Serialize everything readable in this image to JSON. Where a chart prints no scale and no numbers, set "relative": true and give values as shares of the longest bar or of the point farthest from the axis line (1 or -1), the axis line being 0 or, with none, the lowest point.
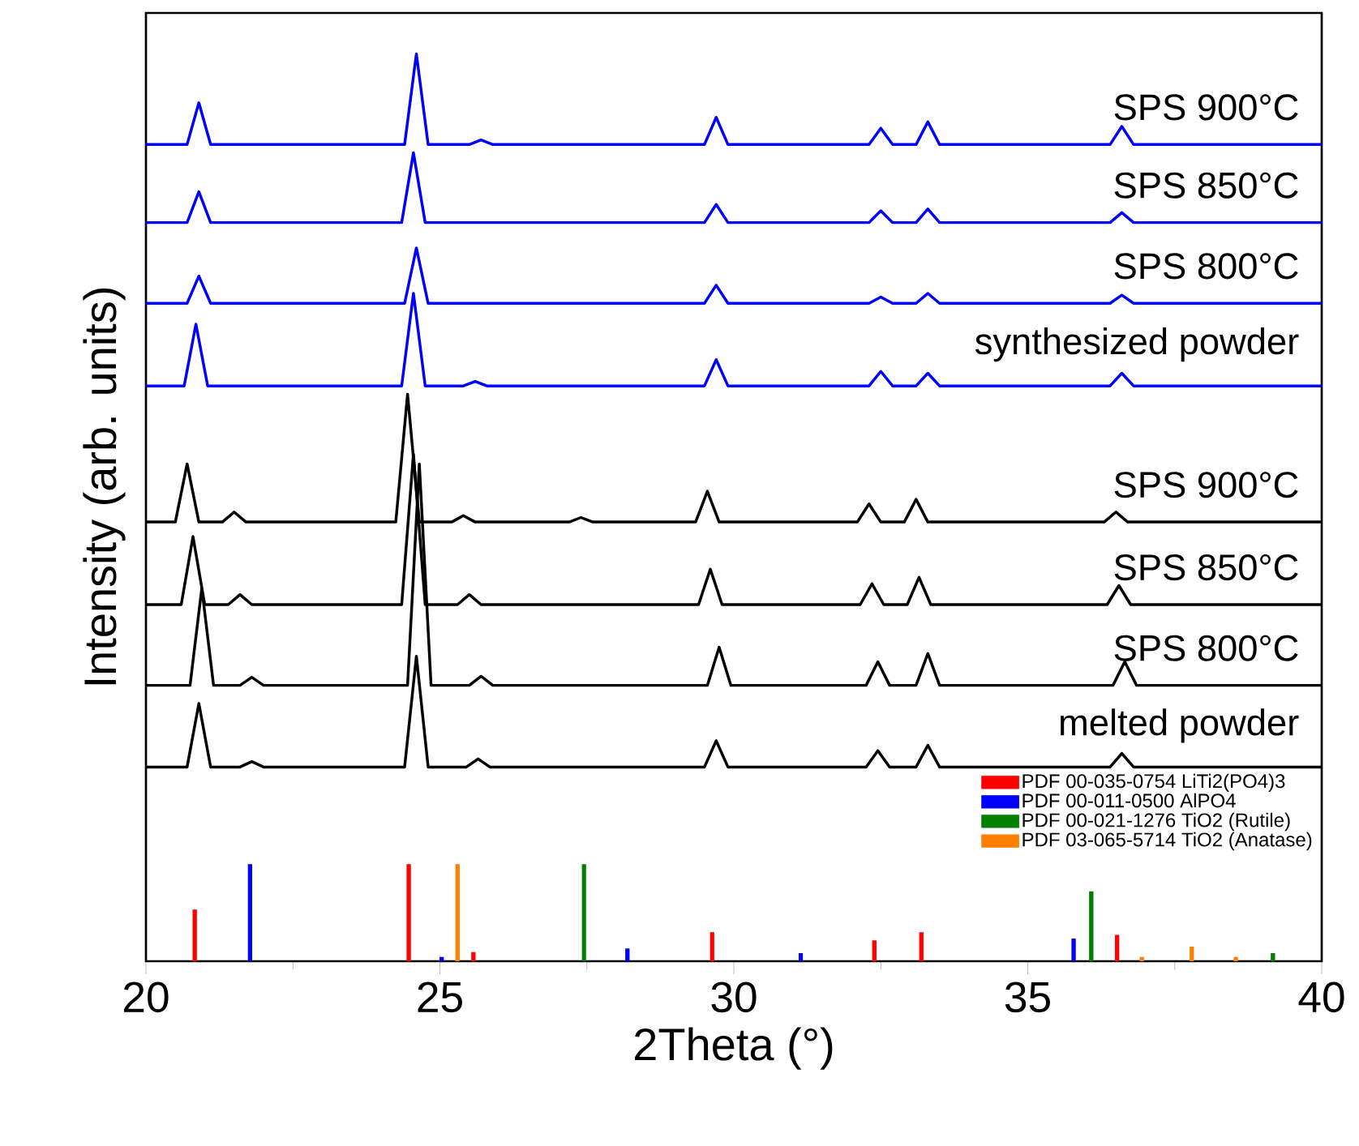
{
  "chart_data": {
    "type": "line",
    "relative": true,
    "xlabel": "2Theta (°)",
    "ylabel": "Intensity (arb. units)",
    "xlim": [
      20,
      40
    ],
    "xticks": [
      20,
      25,
      30,
      35,
      40
    ],
    "legend": "bottom right",
    "series": [
      {
        "name": "SPS 900°C",
        "color": "#0000ff",
        "x": [
          20,
          20.7,
          20.9,
          21.1,
          24.4,
          24.6,
          24.8,
          25.5,
          25.7,
          25.9,
          29.5,
          29.7,
          29.9,
          32.3,
          32.5,
          32.7,
          33.1,
          33.3,
          33.5,
          36.4,
          36.6,
          36.8,
          40
        ],
        "values": [
          0.9,
          0.9,
          0.946,
          0.9,
          0.9,
          1.0,
          0.9,
          0.9,
          0.905,
          0.9,
          0.9,
          0.93,
          0.9,
          0.9,
          0.918,
          0.9,
          0.9,
          0.925,
          0.9,
          0.9,
          0.92,
          0.9,
          0.9
        ]
      },
      {
        "name": "SPS 850°C",
        "color": "#0000ff",
        "x": [
          20,
          20.7,
          20.9,
          21.1,
          24.35,
          24.55,
          24.75,
          29.5,
          29.7,
          29.9,
          32.3,
          32.5,
          32.7,
          33.1,
          33.3,
          33.5,
          36.4,
          36.6,
          36.8,
          40
        ],
        "values": [
          0.814,
          0.814,
          0.848,
          0.814,
          0.814,
          0.891,
          0.814,
          0.814,
          0.834,
          0.814,
          0.814,
          0.827,
          0.814,
          0.814,
          0.829,
          0.814,
          0.814,
          0.825,
          0.814,
          0.814
        ]
      },
      {
        "name": "SPS 800°C",
        "color": "#0000ff",
        "x": [
          20,
          20.7,
          20.9,
          21.1,
          24.4,
          24.6,
          24.8,
          29.5,
          29.7,
          29.9,
          32.3,
          32.5,
          32.7,
          33.1,
          33.3,
          33.5,
          36.4,
          36.6,
          36.8,
          40
        ],
        "values": [
          0.725,
          0.725,
          0.755,
          0.725,
          0.725,
          0.786,
          0.725,
          0.725,
          0.745,
          0.725,
          0.725,
          0.732,
          0.725,
          0.725,
          0.736,
          0.725,
          0.725,
          0.734,
          0.725,
          0.725
        ]
      },
      {
        "name": "synthesized powder",
        "color": "#0000ff",
        "x": [
          20,
          20.65,
          20.85,
          21.05,
          24.35,
          24.55,
          24.75,
          25.4,
          25.6,
          25.8,
          29.5,
          29.7,
          29.9,
          32.3,
          32.5,
          32.7,
          33.1,
          33.3,
          33.5,
          36.4,
          36.6,
          36.8,
          40
        ],
        "values": [
          0.634,
          0.634,
          0.702,
          0.634,
          0.634,
          0.736,
          0.634,
          0.634,
          0.639,
          0.634,
          0.634,
          0.663,
          0.634,
          0.634,
          0.65,
          0.634,
          0.634,
          0.648,
          0.634,
          0.634,
          0.648,
          0.634,
          0.634
        ]
      },
      {
        "name": "SPS 900°C",
        "color": "#000000",
        "x": [
          20,
          20.5,
          20.7,
          20.9,
          21.3,
          21.5,
          21.7,
          24.25,
          24.45,
          24.65,
          25.2,
          25.4,
          25.6,
          27.2,
          27.4,
          27.6,
          29.35,
          29.55,
          29.75,
          32.1,
          32.3,
          32.5,
          32.9,
          33.1,
          33.3,
          36.3,
          36.5,
          36.7,
          40
        ],
        "values": [
          0.484,
          0.484,
          0.548,
          0.484,
          0.484,
          0.495,
          0.484,
          0.484,
          0.625,
          0.484,
          0.484,
          0.491,
          0.484,
          0.484,
          0.489,
          0.484,
          0.484,
          0.518,
          0.484,
          0.484,
          0.504,
          0.484,
          0.484,
          0.509,
          0.484,
          0.484,
          0.495,
          0.484,
          0.484
        ]
      },
      {
        "name": "SPS 850°C",
        "color": "#000000",
        "x": [
          20,
          20.6,
          20.8,
          21.0,
          21.4,
          21.6,
          21.8,
          24.35,
          24.55,
          24.75,
          25.3,
          25.5,
          25.7,
          29.4,
          29.6,
          29.8,
          32.15,
          32.35,
          32.55,
          32.95,
          33.15,
          33.35,
          36.35,
          36.55,
          36.75,
          40
        ],
        "values": [
          0.393,
          0.393,
          0.468,
          0.393,
          0.393,
          0.404,
          0.393,
          0.393,
          0.559,
          0.393,
          0.393,
          0.404,
          0.393,
          0.393,
          0.432,
          0.393,
          0.393,
          0.416,
          0.393,
          0.393,
          0.423,
          0.393,
          0.393,
          0.414,
          0.393,
          0.393
        ]
      },
      {
        "name": "SPS 800°C",
        "color": "#000000",
        "x": [
          20,
          20.75,
          20.95,
          21.15,
          21.6,
          21.8,
          22.0,
          24.45,
          24.65,
          24.85,
          25.5,
          25.7,
          25.9,
          29.55,
          29.75,
          29.95,
          32.25,
          32.45,
          32.65,
          33.1,
          33.3,
          33.5,
          36.45,
          36.65,
          36.85,
          40
        ],
        "values": [
          0.304,
          0.304,
          0.411,
          0.304,
          0.304,
          0.313,
          0.304,
          0.304,
          0.548,
          0.304,
          0.304,
          0.314,
          0.304,
          0.304,
          0.346,
          0.304,
          0.304,
          0.33,
          0.304,
          0.304,
          0.339,
          0.304,
          0.304,
          0.33,
          0.304,
          0.304
        ]
      },
      {
        "name": "melted powder",
        "color": "#000000",
        "x": [
          20,
          20.7,
          20.9,
          21.1,
          21.6,
          21.8,
          22.0,
          24.4,
          24.6,
          24.8,
          25.45,
          25.65,
          25.85,
          29.5,
          29.7,
          29.9,
          32.25,
          32.45,
          32.65,
          33.1,
          33.3,
          33.5,
          36.4,
          36.6,
          36.8,
          40
        ],
        "values": [
          0.214,
          0.214,
          0.284,
          0.214,
          0.214,
          0.22,
          0.214,
          0.214,
          0.336,
          0.214,
          0.214,
          0.223,
          0.214,
          0.214,
          0.243,
          0.214,
          0.214,
          0.232,
          0.214,
          0.214,
          0.238,
          0.214,
          0.214,
          0.229,
          0.214,
          0.214
        ]
      },
      {
        "name": "PDF 00-035-0754 LiTi2(PO4)3",
        "type": "bar",
        "color": "#ff0000",
        "x": [
          20.83,
          24.47,
          25.57,
          29.63,
          32.39,
          33.19,
          36.52
        ],
        "values": [
          0.057,
          0.107,
          0.01,
          0.032,
          0.023,
          0.032,
          0.029
        ]
      },
      {
        "name": "PDF 00-011-0500 AlPO4",
        "type": "bar",
        "color": "#0000ff",
        "x": [
          21.77,
          25.03,
          28.19,
          31.14,
          35.78
        ],
        "values": [
          0.107,
          0.005,
          0.014,
          0.009,
          0.025
        ]
      },
      {
        "name": "PDF 00-021-1276 TiO2 (Rutile)",
        "type": "bar",
        "color": "#007f00",
        "x": [
          27.45,
          36.08,
          39.17
        ],
        "values": [
          0.107,
          0.077,
          0.009
        ]
      },
      {
        "name": "PDF 03-065-5714 TiO2 (Anatase)",
        "type": "bar",
        "color": "#ff8000",
        "x": [
          25.3,
          36.94,
          37.79,
          38.54
        ],
        "values": [
          0.107,
          0.005,
          0.016,
          0.005
        ]
      }
    ]
  }
}
